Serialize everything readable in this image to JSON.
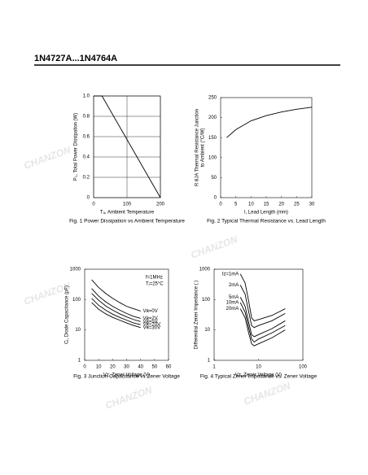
{
  "header": {
    "title": "1N4727A...1N4764A"
  },
  "watermark": "CHANZON",
  "chart_data": [
    {
      "type": "line",
      "title": "Fig. 1 Power Dissipation vs Ambient Temperature",
      "x_label": "Tₐ, Ambient Temperature",
      "y_label": [
        "P₀, Total Power Dissipation (W)"
      ],
      "x": [
        0,
        25,
        200
      ],
      "series": [
        {
          "color": "#000000",
          "values": [
            1,
            1,
            0
          ]
        }
      ],
      "xlim": [
        0,
        200
      ],
      "xticks": [
        0,
        100,
        200
      ],
      "ylim": [
        0,
        1
      ],
      "yticks": [
        0,
        0.2,
        0.4,
        0.6,
        0.8,
        {
          "value": 1,
          "label": "1.0"
        }
      ],
      "grid": true
    },
    {
      "type": "line",
      "title": "Fig. 2 Typical Thermal Resistance vs. Lead Length",
      "x_label": "l, Lead Length (mm)",
      "y_label": [
        "R θJA Thermal Resistance Junction",
        "to Ambient (°C/W)"
      ],
      "x": [
        2,
        5,
        10,
        15,
        20,
        25,
        30
      ],
      "series": [
        {
          "color": "#000000",
          "values": [
            150,
            170,
            192,
            205,
            214,
            221,
            226
          ]
        }
      ],
      "xlim": [
        0,
        30
      ],
      "xticks": [
        0,
        5,
        10,
        15,
        20,
        25,
        30
      ],
      "ylim": [
        0,
        250
      ],
      "yticks": [
        0,
        50,
        100,
        150,
        200,
        250
      ],
      "grid": false
    },
    {
      "type": "line",
      "title": "Fig. 3 Junction Capacitance vs Zener Voltage",
      "x_label": "Vz, Zener Voltage (V)",
      "y_label": [
        "Cⱼ, Diode Capacitance (pF)"
      ],
      "annotations": [
        "f=1MHz",
        "Tⱼ=25°C"
      ],
      "x": [
        5,
        10,
        15,
        20,
        25,
        30,
        35,
        40
      ],
      "series": [
        {
          "name": "Vʀ=0V",
          "color": "#000000",
          "values": [
            450,
            250,
            160,
            110,
            80,
            60,
            50,
            42
          ]
        },
        {
          "name": "Vʀ=2V",
          "color": "#000000",
          "values": [
            230,
            130,
            85,
            60,
            45,
            35,
            28,
            24
          ]
        },
        {
          "name": "Vʀ=5V",
          "color": "#000000",
          "values": [
            160,
            95,
            62,
            45,
            34,
            27,
            22,
            19
          ]
        },
        {
          "name": "Vʀ=20V",
          "color": "#000000",
          "values": [
            110,
            65,
            45,
            33,
            26,
            21,
            17,
            15
          ]
        },
        {
          "name": "Vʀ=30V",
          "color": "#000000",
          "values": [
            80,
            48,
            34,
            26,
            21,
            17,
            14,
            12
          ]
        }
      ],
      "xlim": [
        0,
        60
      ],
      "xticks": [
        0,
        10,
        20,
        30,
        40,
        50,
        60
      ],
      "ylim": [
        1,
        1000
      ],
      "yticks": [
        1,
        10,
        100,
        1000
      ],
      "log_y": true,
      "series_labels": "end",
      "grid": false
    },
    {
      "type": "line",
      "title": "Fig. 4 Typical Zener Impedance vs. Zener Voltage",
      "x_label": "Vz, Zener Voltage (V)",
      "y_label": [
        "Differential Zener Impedance ( )"
      ],
      "x": [
        3.9,
        5,
        6,
        7,
        8,
        10,
        20,
        40
      ],
      "series": [
        {
          "name": "Iz=1mA",
          "color": "#000000",
          "values": [
            700,
            350,
            90,
            25,
            20,
            22,
            30,
            50
          ]
        },
        {
          "name": "2mA",
          "color": "#000000",
          "values": [
            300,
            150,
            40,
            14,
            12,
            14,
            20,
            35
          ]
        },
        {
          "name": "5mA",
          "color": "#000000",
          "values": [
            120,
            60,
            18,
            7,
            6,
            7,
            11,
            20
          ]
        },
        {
          "name": "10mA",
          "color": "#000000",
          "values": [
            80,
            38,
            12,
            5,
            4,
            5,
            8,
            14
          ]
        },
        {
          "name": "20mA",
          "color": "#000000",
          "values": [
            50,
            25,
            8,
            3.5,
            3,
            3.5,
            5.5,
            10
          ]
        }
      ],
      "xlim": [
        1,
        100
      ],
      "xticks": [
        1,
        10,
        100
      ],
      "log_x": true,
      "ylim": [
        1,
        1000
      ],
      "yticks": [
        1,
        10,
        100,
        1000
      ],
      "log_y": true,
      "series_labels": "start",
      "grid": false
    }
  ]
}
